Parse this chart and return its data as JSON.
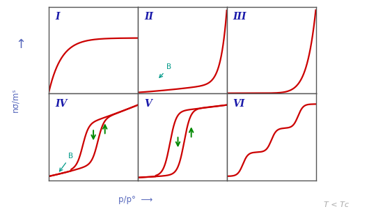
{
  "ylabel": "nσ/mˢ",
  "xlabel": "p/p°",
  "T_label": "T < Tᴄ",
  "panel_labels": [
    "I",
    "II",
    "III",
    "IV",
    "V",
    "VI"
  ],
  "panel_color": "#ffffff",
  "border_color": "#555555",
  "curve_color": "#cc0000",
  "label_color": "#1a1aaa",
  "arrow_color": "#5566bb",
  "green_color": "#008800",
  "teal_color": "#009988",
  "figsize": [
    5.4,
    3.2
  ],
  "dpi": 100
}
